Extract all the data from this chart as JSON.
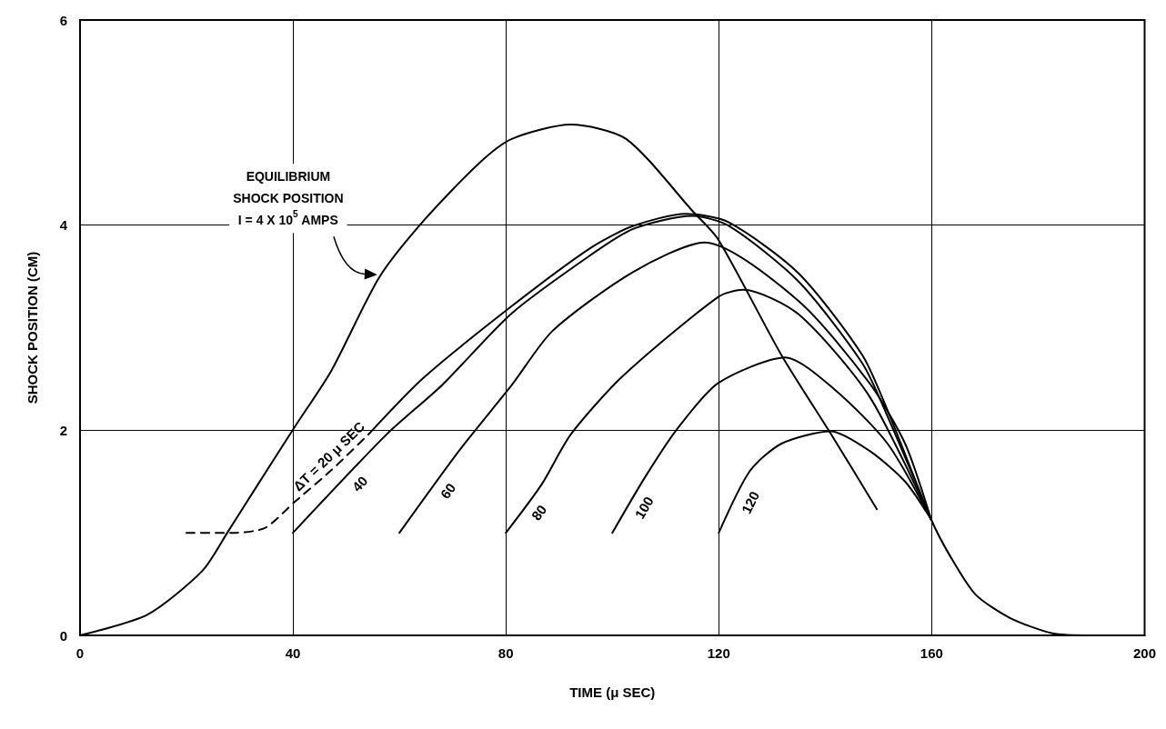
{
  "chart_data": {
    "type": "line",
    "xlabel": "TIME (μ SEC)",
    "ylabel": "SHOCK POSITION (CM)",
    "xlim": [
      0,
      200
    ],
    "xticks": [
      0,
      40,
      80,
      120,
      160,
      200
    ],
    "ylim": [
      0,
      6
    ],
    "yticks": [
      0,
      2,
      4,
      6
    ],
    "grid": true,
    "marker": "none",
    "series": [
      {
        "color": "#000000",
        "x": [
          0,
          12.6,
          23,
          27.9,
          33.4,
          40.3,
          47.2,
          56.2,
          64.5,
          74.9,
          81.1,
          92.2,
          102.6,
          115.2,
          119.9,
          131.8,
          141,
          149.7
        ],
        "values": [
          0,
          0.2,
          0.63,
          1.02,
          1.47,
          2.03,
          2.58,
          3.49,
          4.04,
          4.6,
          4.84,
          4.98,
          4.84,
          4.13,
          3.86,
          2.73,
          1.97,
          1.23
        ]
      },
      {
        "name": "ΔT = 20 μ SEC",
        "color": "#000000",
        "line_style": "dashed",
        "x": [
          20,
          29.2,
          34.8,
          40.3,
          47.2,
          54.2
        ],
        "values": [
          1.0,
          1.0,
          1.05,
          1.3,
          1.61,
          1.96
        ]
      },
      {
        "color": "#000000",
        "x": [
          54.2,
          64.5,
          81.1,
          95.7,
          103.8,
          113.8,
          121.8,
          135,
          147,
          152.2,
          159.9,
          163.5,
          168.2,
          174.7,
          182.7,
          190
        ],
        "values": [
          1.96,
          2.51,
          3.21,
          3.77,
          3.99,
          4.11,
          4.03,
          3.53,
          2.73,
          2.13,
          1.13,
          0.77,
          0.4,
          0.17,
          0.02,
          0
        ]
      },
      {
        "name": "40",
        "color": "#000000",
        "x": [
          40,
          57.6,
          68,
          81.1,
          95.7,
          103.8,
          115,
          122,
          135,
          147,
          152,
          159.9
        ],
        "values": [
          1.0,
          1.96,
          2.44,
          3.14,
          3.7,
          3.96,
          4.09,
          3.99,
          3.45,
          2.65,
          2.1,
          1.13
        ]
      },
      {
        "name": "60",
        "color": "#000000",
        "x": [
          60,
          71.5,
          81.1,
          88.8,
          103.8,
          117.3,
          135,
          148.3,
          155,
          159.9
        ],
        "values": [
          1.0,
          1.82,
          2.44,
          2.97,
          3.54,
          3.83,
          3.26,
          2.46,
          1.87,
          1.13
        ]
      },
      {
        "name": "80",
        "color": "#000000",
        "x": [
          80,
          86.7,
          92.2,
          102,
          119.9,
          124.6,
          135,
          148.3,
          159.9
        ],
        "values": [
          1.0,
          1.47,
          1.96,
          2.53,
          3.3,
          3.37,
          3.13,
          2.33,
          1.13
        ]
      },
      {
        "name": "100",
        "color": "#000000",
        "x": [
          100,
          106,
          112,
          119.9,
          132.5,
          141.7,
          151.7,
          159.9
        ],
        "values": [
          1.0,
          1.53,
          2.0,
          2.46,
          2.71,
          2.4,
          1.87,
          1.13
        ]
      },
      {
        "name": "120",
        "color": "#000000",
        "x": [
          120,
          125.8,
          131.8,
          141,
          148.3,
          155,
          159.9
        ],
        "values": [
          1.0,
          1.6,
          1.87,
          1.99,
          1.8,
          1.5,
          1.13
        ]
      }
    ],
    "annotations": [
      "EQUILIBRIUM\nSHOCK POSITION\nI = 4 X 10$^{5}$ AMPS"
    ]
  }
}
